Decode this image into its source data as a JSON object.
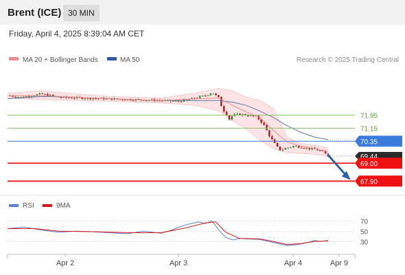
{
  "header": {
    "instrument": "Brent (ICE)",
    "timeframe": "30 MIN",
    "datetime": "Friday, April 4, 2025 8:39:04 AM CET"
  },
  "legend": {
    "ma20_label": "MA 20 + Bollinger Bands",
    "ma50_label": "MA 50",
    "credit": "Research © 2025 Trading Central"
  },
  "colors": {
    "up_candle": "#2a8a3a",
    "down_candle": "#b22222",
    "ma20": "#ef8a8a",
    "bollinger_fill": "#fde0e0",
    "ma50": "#5577aa",
    "resistance": "#8cc56a",
    "resistance_text": "#5a9e2e",
    "pivot": "#3a7bdc",
    "support": "#ee1111",
    "last_price": "#2b2b2b",
    "rsi": "#5a7fd6",
    "rsi_ma": "#dd1111"
  },
  "chart_data": [
    {
      "type": "candlestick",
      "instrument": "Brent (ICE)",
      "timeframe": "30 MIN",
      "x_tick_labels": [
        "Apr 2",
        "Apr 3",
        "Apr 4",
        "Apr 9"
      ],
      "ylim": [
        67.2,
        74.8
      ],
      "close_path": [
        [
          0,
          73.15
        ],
        [
          4,
          73.05
        ],
        [
          10,
          73.25
        ],
        [
          15,
          73.05
        ],
        [
          22,
          73.0
        ],
        [
          30,
          72.95
        ],
        [
          38,
          72.9
        ],
        [
          45,
          72.85
        ],
        [
          50,
          72.8
        ],
        [
          54,
          72.95
        ],
        [
          58,
          73.15
        ],
        [
          60,
          73.35
        ],
        [
          62,
          73.0
        ],
        [
          63,
          72.3
        ],
        [
          64,
          72.1
        ],
        [
          65,
          71.7
        ],
        [
          66,
          71.95
        ],
        [
          68,
          72.0
        ],
        [
          70,
          71.95
        ],
        [
          73,
          71.85
        ],
        [
          75,
          71.4
        ],
        [
          76,
          71.0
        ],
        [
          77,
          70.6
        ],
        [
          78,
          70.3
        ],
        [
          79,
          70.0
        ],
        [
          80,
          69.8
        ],
        [
          82,
          69.95
        ],
        [
          84,
          70.05
        ],
        [
          86,
          70.0
        ],
        [
          88,
          69.9
        ],
        [
          90,
          69.85
        ],
        [
          92,
          69.75
        ],
        [
          93,
          69.6
        ],
        [
          94,
          69.44
        ]
      ],
      "ma20": [
        [
          0,
          73.15
        ],
        [
          10,
          73.15
        ],
        [
          20,
          73.05
        ],
        [
          30,
          72.95
        ],
        [
          45,
          72.85
        ],
        [
          55,
          72.95
        ],
        [
          62,
          73.0
        ],
        [
          66,
          72.55
        ],
        [
          70,
          72.15
        ],
        [
          74,
          71.8
        ],
        [
          78,
          71.0
        ],
        [
          82,
          70.3
        ],
        [
          86,
          70.05
        ],
        [
          90,
          69.9
        ],
        [
          94,
          69.7
        ]
      ],
      "bollinger_upper": [
        [
          0,
          73.3
        ],
        [
          10,
          73.45
        ],
        [
          20,
          73.25
        ],
        [
          30,
          73.1
        ],
        [
          45,
          73.0
        ],
        [
          55,
          73.3
        ],
        [
          62,
          73.6
        ],
        [
          66,
          73.45
        ],
        [
          70,
          73.05
        ],
        [
          74,
          72.85
        ],
        [
          78,
          72.35
        ],
        [
          82,
          70.6
        ],
        [
          86,
          70.2
        ],
        [
          90,
          70.1
        ],
        [
          94,
          69.95
        ]
      ],
      "bollinger_lower": [
        [
          0,
          73.0
        ],
        [
          10,
          72.9
        ],
        [
          20,
          72.85
        ],
        [
          30,
          72.8
        ],
        [
          45,
          72.7
        ],
        [
          55,
          72.55
        ],
        [
          62,
          72.2
        ],
        [
          66,
          71.6
        ],
        [
          70,
          71.1
        ],
        [
          74,
          70.4
        ],
        [
          78,
          69.9
        ],
        [
          82,
          69.65
        ],
        [
          86,
          69.6
        ],
        [
          90,
          69.55
        ],
        [
          94,
          69.4
        ]
      ],
      "ma50": [
        [
          0,
          72.95
        ],
        [
          10,
          73.1
        ],
        [
          20,
          73.05
        ],
        [
          30,
          72.95
        ],
        [
          45,
          72.85
        ],
        [
          55,
          72.85
        ],
        [
          62,
          72.85
        ],
        [
          66,
          72.75
        ],
        [
          70,
          72.55
        ],
        [
          74,
          72.2
        ],
        [
          78,
          71.8
        ],
        [
          82,
          71.3
        ],
        [
          86,
          70.9
        ],
        [
          90,
          70.6
        ],
        [
          94,
          70.45
        ]
      ],
      "levels": [
        {
          "value": "71.95",
          "kind": "resistance"
        },
        {
          "value": "71.15",
          "kind": "resistance"
        },
        {
          "value": "70.35",
          "kind": "pivot"
        },
        {
          "value": "69.44",
          "kind": "last"
        },
        {
          "value": "69.00",
          "kind": "support"
        },
        {
          "value": "67.90",
          "kind": "support"
        }
      ],
      "forecast_arrow": {
        "from": [
          94,
          69.5
        ],
        "to": [
          100,
          68.1
        ],
        "direction": "down"
      }
    },
    {
      "type": "line",
      "legend": [
        "RSI",
        "9MA"
      ],
      "yticks": [
        "70",
        "50",
        "30"
      ],
      "ylim": [
        5,
        85
      ],
      "rsi": [
        [
          0,
          55
        ],
        [
          5,
          58
        ],
        [
          10,
          52
        ],
        [
          15,
          48
        ],
        [
          20,
          50
        ],
        [
          25,
          49
        ],
        [
          30,
          47
        ],
        [
          35,
          45
        ],
        [
          40,
          50
        ],
        [
          45,
          46
        ],
        [
          48,
          52
        ],
        [
          52,
          62
        ],
        [
          56,
          68
        ],
        [
          58,
          65
        ],
        [
          60,
          70
        ],
        [
          62,
          52
        ],
        [
          64,
          38
        ],
        [
          66,
          33
        ],
        [
          68,
          36
        ],
        [
          70,
          35
        ],
        [
          74,
          34
        ],
        [
          78,
          28
        ],
        [
          82,
          22
        ],
        [
          85,
          24
        ],
        [
          88,
          28
        ],
        [
          90,
          32
        ],
        [
          92,
          30
        ],
        [
          94,
          32
        ]
      ],
      "rsi_ma": [
        [
          0,
          55
        ],
        [
          8,
          55
        ],
        [
          15,
          50
        ],
        [
          25,
          49
        ],
        [
          35,
          47
        ],
        [
          45,
          47
        ],
        [
          52,
          56
        ],
        [
          58,
          66
        ],
        [
          61,
          68
        ],
        [
          64,
          48
        ],
        [
          68,
          36
        ],
        [
          74,
          35
        ],
        [
          78,
          30
        ],
        [
          82,
          24
        ],
        [
          86,
          26
        ],
        [
          90,
          30
        ],
        [
          94,
          31
        ]
      ]
    }
  ]
}
